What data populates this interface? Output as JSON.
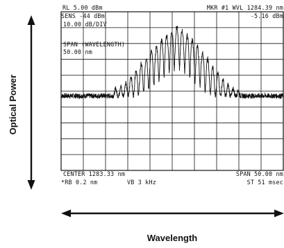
{
  "instrument_readout": {
    "reference_level": "RL 5.00 dBm",
    "marker": "MKR #1 WVL 1284.39 nm",
    "marker_level": "-5.16 dBm",
    "sensitivity": "SENS -44 dBm",
    "scale": "10.00 dB/DIV",
    "span_mode": "SPAN (WAVELENGTH)",
    "span_mode_value": "50.00 nm",
    "center": "CENTER 1283.33 nm",
    "span": "SPAN 50.00 nm",
    "resolution_bandwidth": "*RB 0.2 nm",
    "video_bandwidth": "VB 3 kHz",
    "sweep_time": "ST 51 msec"
  },
  "outer_labels": {
    "y_axis": "Optical Power",
    "x_axis": "Wavelength"
  },
  "chart_data": {
    "type": "line",
    "title": "",
    "xlabel": "Wavelength",
    "ylabel": "Optical Power",
    "x_unit": "nm",
    "y_unit": "dBm",
    "xlim": [
      1258.33,
      1308.33
    ],
    "ylim": [
      -95,
      5
    ],
    "grid": true,
    "grid_divisions": {
      "x": 10,
      "y": 10
    },
    "noise_floor_dbm": -48,
    "marker": {
      "x": 1284.39,
      "y": -5.16
    },
    "series": [
      {
        "name": "",
        "peaks": {
          "x": [
            1270.6,
            1271.75,
            1272.9,
            1274.05,
            1275.2,
            1276.35,
            1277.5,
            1278.65,
            1279.8,
            1280.95,
            1282.1,
            1283.25,
            1284.39,
            1285.55,
            1286.7,
            1287.85,
            1289.0,
            1290.15,
            1291.3,
            1292.45,
            1293.6,
            1294.75,
            1295.9,
            1297.05,
            1298.2
          ],
          "y": [
            -45,
            -43,
            -40,
            -36,
            -32,
            -28,
            -24,
            -20,
            -17,
            -13,
            -10,
            -8,
            -5.16,
            -7,
            -10,
            -13,
            -17,
            -21,
            -25,
            -30,
            -34,
            -38,
            -42,
            -45,
            -47
          ]
        }
      }
    ]
  }
}
